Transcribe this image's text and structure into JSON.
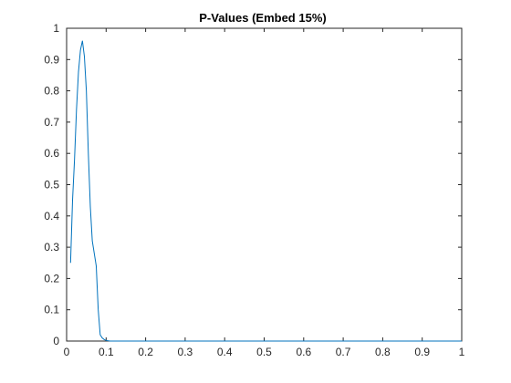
{
  "chart_data": {
    "type": "line",
    "title": "P-Values (Embed 15%)",
    "xlabel": "",
    "ylabel": "",
    "xlim": [
      0,
      1
    ],
    "ylim": [
      0,
      1
    ],
    "xticks": [
      "0",
      "0.1",
      "0.2",
      "0.3",
      "0.4",
      "0.5",
      "0.6",
      "0.7",
      "0.8",
      "0.9",
      "1"
    ],
    "yticks": [
      "0",
      "0.1",
      "0.2",
      "0.3",
      "0.4",
      "0.5",
      "0.6",
      "0.7",
      "0.8",
      "0.9",
      "1"
    ],
    "grid": false,
    "series": [
      {
        "color": "#0072BD",
        "x": [
          0.01,
          0.015,
          0.02,
          0.025,
          0.03,
          0.035,
          0.04,
          0.045,
          0.05,
          0.055,
          0.06,
          0.065,
          0.07,
          0.075,
          0.08,
          0.085,
          0.09,
          0.095,
          0.1,
          0.11,
          0.2,
          0.3,
          0.4,
          0.5,
          0.6,
          0.7,
          0.8,
          0.9,
          1.0
        ],
        "y": [
          0.25,
          0.45,
          0.58,
          0.74,
          0.86,
          0.93,
          0.96,
          0.91,
          0.8,
          0.6,
          0.43,
          0.32,
          0.28,
          0.24,
          0.1,
          0.02,
          0.01,
          0.005,
          0.002,
          0.0,
          0.0,
          0.0,
          0.0,
          0.0,
          0.0,
          0.0,
          0.0,
          0.0,
          0.0
        ]
      }
    ]
  }
}
